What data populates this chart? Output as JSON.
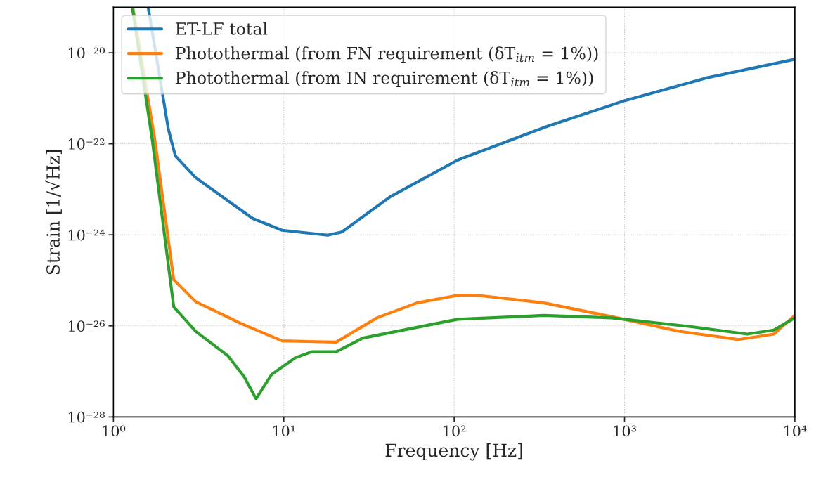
{
  "chart_data": {
    "type": "line",
    "xlabel": "Frequency [Hz]",
    "ylabel": "Strain [1/√Hz]",
    "log": "xy",
    "grid": true,
    "legend": "top left",
    "xlim": [
      1,
      10000
    ],
    "ylim": [
      1e-28,
      1e-19
    ],
    "xticks": [
      {
        "value": 1,
        "label": "10⁰"
      },
      {
        "value": 10,
        "label": "10¹"
      },
      {
        "value": 100,
        "label": "10²"
      },
      {
        "value": 1000,
        "label": "10³"
      },
      {
        "value": 10000,
        "label": "10⁴"
      }
    ],
    "yticks": [
      {
        "value": 1e-28,
        "label": "10⁻²⁸"
      },
      {
        "value": 1e-26,
        "label": "10⁻²⁶"
      },
      {
        "value": 1e-24,
        "label": "10⁻²⁴"
      },
      {
        "value": 1e-22,
        "label": "10⁻²²"
      },
      {
        "value": 1e-20,
        "label": "10⁻²⁰"
      }
    ],
    "series": [
      {
        "name": "ET-LF total",
        "color": "#1f77b4",
        "x": [
          1.6,
          2.1,
          2.31,
          3.04,
          6.55,
          9.77,
          18.1,
          21.9,
          42.2,
          105,
          350,
          1005,
          3020,
          10000
        ],
        "values": [
          1e-19,
          2.1e-22,
          5.4e-23,
          1.8e-23,
          2.3e-24,
          1.26e-24,
          9.8e-25,
          1.15e-24,
          6.9e-24,
          4.4e-23,
          2.4e-22,
          8.9e-22,
          2.8e-21,
          7.2e-21
        ]
      },
      {
        "name": "Photothermal (from FN requirement (δT$_{itm}$ = 1%))",
        "color": "#ff7f0e",
        "x": [
          1.3,
          1.75,
          2.26,
          3.04,
          5.63,
          9.77,
          15.1,
          20.3,
          35.2,
          60.4,
          105,
          136,
          337,
          839,
          2090,
          4680,
          7520,
          10000
        ],
        "values": [
          1e-19,
          1.23e-22,
          1.03e-25,
          3.4e-26,
          1.12e-26,
          4.7e-27,
          4.5e-27,
          4.4e-27,
          1.5e-26,
          3.2e-26,
          4.7e-26,
          4.7e-26,
          3.2e-26,
          1.6e-26,
          7.6e-27,
          5e-27,
          6.6e-27,
          1.7e-26
        ]
      },
      {
        "name": "Photothermal (from IN requirement (δT$_{itm}$ = 1%))",
        "color": "#2ca02c",
        "x": [
          1.29,
          1.69,
          2.26,
          3.04,
          4.7,
          5.85,
          6.87,
          8.47,
          11.7,
          14.6,
          20.3,
          29.1,
          105,
          337,
          839,
          2520,
          5250,
          7520,
          10000
        ],
        "values": [
          1e-19,
          1.23e-22,
          2.6e-26,
          7.6e-27,
          2.2e-27,
          7.6e-28,
          2.5e-28,
          8.5e-28,
          2e-27,
          2.7e-27,
          2.7e-27,
          5.4e-27,
          1.4e-26,
          1.7e-26,
          1.5e-26,
          9.5e-27,
          6.6e-27,
          8.1e-27,
          1.5e-26
        ]
      }
    ]
  }
}
